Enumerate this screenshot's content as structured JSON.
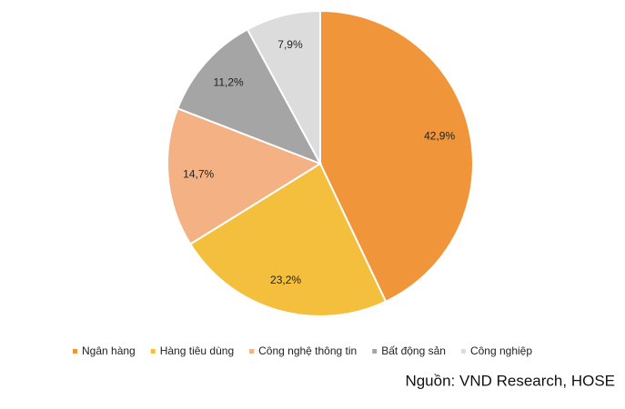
{
  "chart_data": {
    "type": "pie",
    "categories": [
      "Ngân hàng",
      "Hàng tiêu dùng",
      "Công nghệ thông tin",
      "Bất động sản",
      "Công nghiệp"
    ],
    "values": [
      42.9,
      23.2,
      14.7,
      11.2,
      7.9
    ],
    "value_labels": [
      "42,9%",
      "23,2%",
      "14,7%",
      "11,2%",
      "7,9%"
    ],
    "colors": [
      "#f0953a",
      "#f5bf3e",
      "#f4b183",
      "#a5a5a5",
      "#dcdcdc"
    ],
    "legend": "bottom",
    "source": "Nguồn: VND Research, HOSE"
  }
}
